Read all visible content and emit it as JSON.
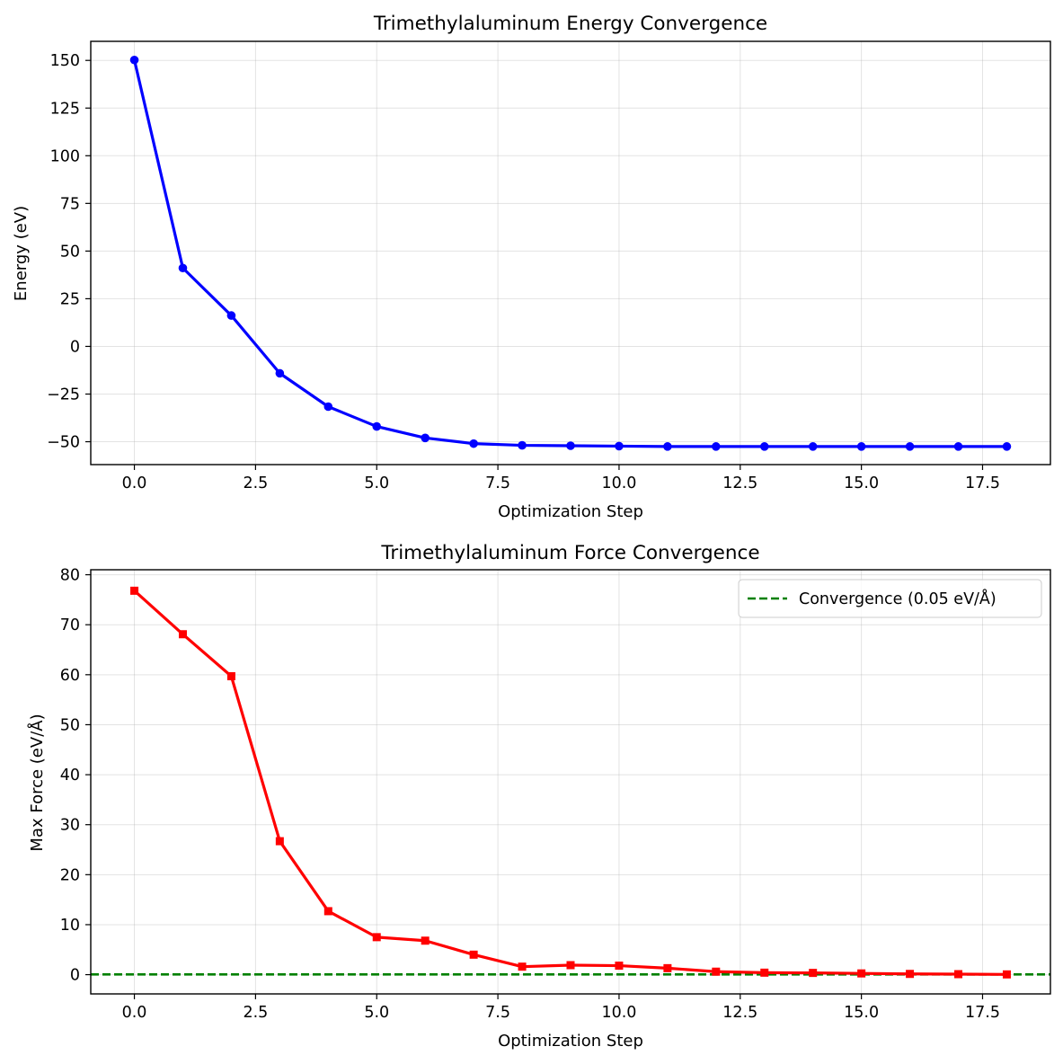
{
  "chart_data": [
    {
      "type": "line",
      "title": "Trimethylaluminum Energy Convergence",
      "xlabel": "Optimization Step",
      "ylabel": "Energy (eV)",
      "xlim": [
        -0.9,
        18.9
      ],
      "ylim": [
        -62,
        160
      ],
      "xticks": [
        0.0,
        2.5,
        5.0,
        7.5,
        10.0,
        12.5,
        15.0,
        17.5
      ],
      "xtick_labels": [
        "0.0",
        "2.5",
        "5.0",
        "7.5",
        "10.0",
        "12.5",
        "15.0",
        "17.5"
      ],
      "yticks": [
        -50,
        -25,
        0,
        25,
        50,
        75,
        100,
        125,
        150
      ],
      "ytick_labels": [
        "−50",
        "−25",
        "0",
        "25",
        "50",
        "75",
        "100",
        "125",
        "150"
      ],
      "grid": true,
      "series": [
        {
          "color": "#0000ff",
          "marker": "circle",
          "x": [
            0,
            1,
            2,
            3,
            4,
            5,
            6,
            7,
            8,
            9,
            10,
            11,
            12,
            13,
            14,
            15,
            16,
            17,
            18
          ],
          "values": [
            150.2,
            41.1,
            16.2,
            -14.1,
            -31.6,
            -42.0,
            -48.0,
            -51.0,
            -51.9,
            -52.1,
            -52.3,
            -52.5,
            -52.5,
            -52.5,
            -52.5,
            -52.5,
            -52.5,
            -52.5,
            -52.5
          ]
        }
      ]
    },
    {
      "type": "line",
      "title": "Trimethylaluminum Force Convergence",
      "xlabel": "Optimization Step",
      "ylabel": "Max Force (eV/Å)",
      "xlim": [
        -0.9,
        18.9
      ],
      "ylim": [
        -3.85,
        81.0
      ],
      "xticks": [
        0.0,
        2.5,
        5.0,
        7.5,
        10.0,
        12.5,
        15.0,
        17.5
      ],
      "xtick_labels": [
        "0.0",
        "2.5",
        "5.0",
        "7.5",
        "10.0",
        "12.5",
        "15.0",
        "17.5"
      ],
      "yticks": [
        0,
        10,
        20,
        30,
        40,
        50,
        60,
        70,
        80
      ],
      "ytick_labels": [
        "0",
        "10",
        "20",
        "30",
        "40",
        "50",
        "60",
        "70",
        "80"
      ],
      "grid": true,
      "legend_position": "top-right",
      "series": [
        {
          "color": "#ff0000",
          "marker": "square",
          "x": [
            0,
            1,
            2,
            3,
            4,
            5,
            6,
            7,
            8,
            9,
            10,
            11,
            12,
            13,
            14,
            15,
            16,
            17,
            18
          ],
          "values": [
            76.8,
            68.1,
            59.7,
            26.7,
            12.7,
            7.5,
            6.8,
            4.0,
            1.6,
            1.9,
            1.8,
            1.3,
            0.6,
            0.4,
            0.35,
            0.25,
            0.15,
            0.1,
            0.05
          ]
        }
      ],
      "reference_lines": [
        {
          "name": "Convergence (0.05 eV/Å)",
          "color": "#008000",
          "style": "dashed",
          "y": 0.05
        }
      ]
    }
  ]
}
